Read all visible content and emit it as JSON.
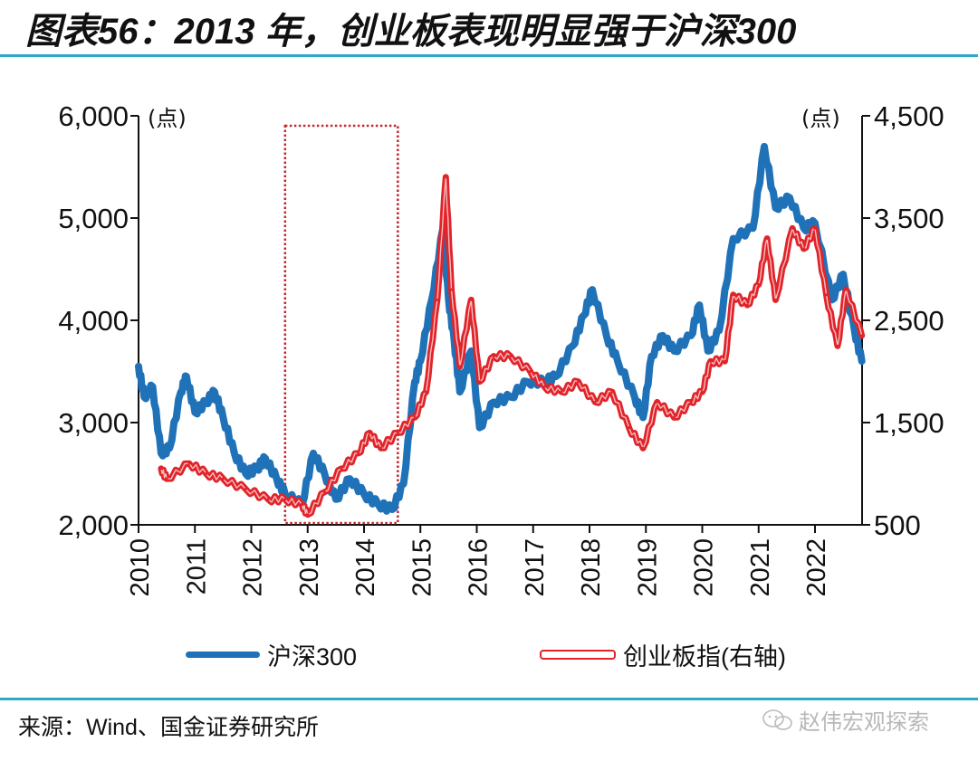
{
  "title": "图表56：2013 年，创业板表现明显强于沪深300",
  "source": "来源：Wind、国金证券研究所",
  "watermark": {
    "icon": "wechat-icon",
    "text": "赵伟宏观探索"
  },
  "legend": {
    "items": [
      {
        "label": "沪深300",
        "color": "#1f72b8"
      },
      {
        "label": "创业板指(右轴)",
        "color": "#e0242a"
      }
    ]
  },
  "chart_data": {
    "type": "line",
    "title": "2013 年，创业板表现明显强于沪深300",
    "xlabel": "",
    "ylabel_left": "(点)",
    "ylabel_right": "(点)",
    "x_ticks": [
      "2010",
      "2011",
      "2012",
      "2013",
      "2014",
      "2015",
      "2016",
      "2017",
      "2018",
      "2019",
      "2020",
      "2021",
      "2022"
    ],
    "xlim": [
      2010,
      2022.83
    ],
    "y_left": {
      "range": [
        2000,
        6000
      ],
      "ticks": [
        "2,000",
        "3,000",
        "4,000",
        "5,000",
        "6,000"
      ]
    },
    "y_right": {
      "range": [
        500,
        4500
      ],
      "ticks": [
        "500",
        "1,500",
        "2,500",
        "3,500",
        "4,500"
      ]
    },
    "highlight_box": {
      "x_range": [
        2012.6,
        2014.6
      ],
      "label": "2013 highlight",
      "style": "dotted",
      "color": "#c0282d"
    },
    "grid": false,
    "legend_position": "bottom",
    "series": [
      {
        "name": "沪深300",
        "axis": "left",
        "color": "#1f72b8",
        "x": [
          2010.0,
          2010.1,
          2010.25,
          2010.4,
          2010.55,
          2010.75,
          2010.85,
          2011.0,
          2011.2,
          2011.35,
          2011.5,
          2011.7,
          2011.9,
          2012.1,
          2012.25,
          2012.45,
          2012.6,
          2012.9,
          2013.1,
          2013.3,
          2013.5,
          2013.75,
          2014.0,
          2014.25,
          2014.5,
          2014.7,
          2014.9,
          2015.0,
          2015.2,
          2015.4,
          2015.5,
          2015.6,
          2015.7,
          2015.9,
          2016.05,
          2016.3,
          2016.6,
          2016.9,
          2017.2,
          2017.4,
          2017.7,
          2017.9,
          2018.05,
          2018.3,
          2018.5,
          2018.8,
          2018.95,
          2019.1,
          2019.3,
          2019.5,
          2019.8,
          2019.95,
          2020.1,
          2020.3,
          2020.55,
          2020.9,
          2021.1,
          2021.3,
          2021.55,
          2021.8,
          2022.0,
          2022.3,
          2022.5,
          2022.7,
          2022.83
        ],
        "y": [
          3550,
          3250,
          3350,
          2700,
          2750,
          3300,
          3450,
          3100,
          3200,
          3300,
          3050,
          2700,
          2500,
          2550,
          2650,
          2450,
          2300,
          2200,
          2700,
          2500,
          2250,
          2450,
          2300,
          2200,
          2150,
          2400,
          3400,
          3600,
          4200,
          4900,
          4200,
          3800,
          3300,
          3700,
          2950,
          3200,
          3250,
          3400,
          3400,
          3450,
          3750,
          4050,
          4300,
          3850,
          3600,
          3250,
          3050,
          3650,
          3850,
          3700,
          3850,
          4150,
          3700,
          3900,
          4800,
          4900,
          5700,
          5100,
          5200,
          4900,
          4950,
          4200,
          4450,
          3900,
          3600
        ]
      },
      {
        "name": "创业板指(右轴)",
        "axis": "right",
        "color": "#e0242a",
        "x": [
          2010.4,
          2010.5,
          2010.9,
          2011.2,
          2011.5,
          2011.9,
          2012.3,
          2012.6,
          2012.9,
          2013.0,
          2013.3,
          2013.6,
          2013.9,
          2014.1,
          2014.3,
          2014.6,
          2014.9,
          2015.1,
          2015.3,
          2015.45,
          2015.55,
          2015.7,
          2015.9,
          2016.05,
          2016.3,
          2016.6,
          2016.95,
          2017.2,
          2017.5,
          2017.8,
          2018.1,
          2018.4,
          2018.7,
          2018.95,
          2019.2,
          2019.5,
          2019.8,
          2020.0,
          2020.15,
          2020.4,
          2020.55,
          2020.8,
          2021.0,
          2021.15,
          2021.3,
          2021.6,
          2021.8,
          2022.0,
          2022.2,
          2022.4,
          2022.55,
          2022.83
        ],
        "y": [
          1050,
          950,
          1100,
          1000,
          950,
          850,
          750,
          750,
          700,
          600,
          820,
          1050,
          1200,
          1400,
          1250,
          1400,
          1550,
          1800,
          2700,
          3900,
          2800,
          2050,
          2700,
          1900,
          2150,
          2150,
          2000,
          1850,
          1800,
          1900,
          1700,
          1800,
          1450,
          1250,
          1700,
          1550,
          1700,
          1800,
          2100,
          2100,
          2750,
          2650,
          2850,
          3300,
          2700,
          3400,
          3200,
          3400,
          2750,
          2250,
          2800,
          2350
        ]
      }
    ]
  }
}
